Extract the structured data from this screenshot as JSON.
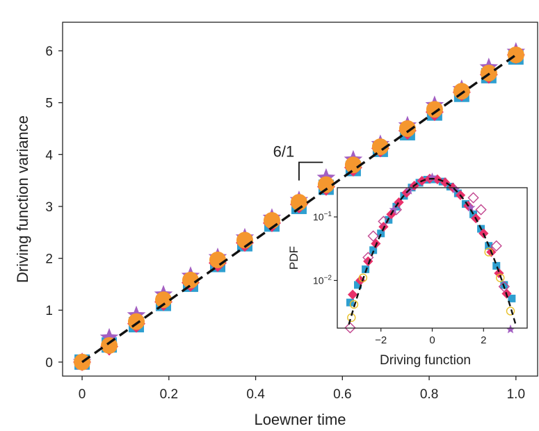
{
  "chart_data": [
    {
      "type": "scatter",
      "xlabel": "Loewner time",
      "ylabel": "Driving function variance",
      "xlim": [
        -0.045,
        1.05
      ],
      "ylim": [
        -0.27,
        6.55
      ],
      "xticks": [
        0,
        0.2,
        0.4,
        0.6,
        0.8,
        1.0
      ],
      "xtick_labels": [
        "0",
        "0.2",
        "0.4",
        "0.6",
        "0.8",
        "1.0"
      ],
      "yticks": [
        0,
        1,
        2,
        3,
        4,
        5,
        6
      ],
      "ytick_labels": [
        "0",
        "1",
        "2",
        "3",
        "4",
        "5",
        "6"
      ],
      "grid": false,
      "x": [
        0,
        0.0625,
        0.125,
        0.1875,
        0.25,
        0.3125,
        0.375,
        0.4375,
        0.5,
        0.5625,
        0.625,
        0.6875,
        0.75,
        0.8125,
        0.875,
        0.9375,
        1.0
      ],
      "series": [
        {
          "marker": "square",
          "color": "#2e9fd0",
          "values": [
            0,
            0.33,
            0.72,
            1.13,
            1.5,
            1.88,
            2.28,
            2.66,
            3.0,
            3.37,
            3.73,
            4.1,
            4.42,
            4.8,
            5.16,
            5.52,
            5.88
          ]
        },
        {
          "marker": "star",
          "color": "#a35fc2",
          "values": [
            0,
            0.47,
            0.9,
            1.3,
            1.66,
            2.02,
            2.4,
            2.78,
            3.12,
            3.55,
            3.9,
            4.2,
            4.56,
            4.95,
            5.26,
            5.68,
            5.98
          ]
        },
        {
          "marker": "diamond",
          "color": "#e8316a",
          "values": [
            0,
            0.3,
            0.74,
            1.16,
            1.53,
            1.91,
            2.3,
            2.68,
            3.04,
            3.38,
            3.75,
            4.12,
            4.46,
            4.82,
            5.2,
            5.54,
            5.92
          ]
        },
        {
          "marker": "circle",
          "color": "#f5972f",
          "values": [
            0,
            0.32,
            0.78,
            1.2,
            1.58,
            1.97,
            2.35,
            2.73,
            3.08,
            3.42,
            3.8,
            4.15,
            4.5,
            4.87,
            5.22,
            5.57,
            5.92
          ]
        }
      ],
      "fit_line": {
        "style": "dashed",
        "color": "#111111",
        "x": [
          0,
          1.0
        ],
        "y": [
          0,
          5.92
        ]
      },
      "slope_annotation": {
        "label": "6/1",
        "x_start": 0.5,
        "x_end": 0.555,
        "y_top": 3.85,
        "y_bottom": 3.5
      }
    },
    {
      "type": "scatter",
      "xlabel": "Driving function",
      "ylabel": "PDF",
      "xlim": [
        -3.7,
        3.7
      ],
      "ylim_log10": [
        -2.75,
        -0.54
      ],
      "xticks": [
        -2,
        0,
        2
      ],
      "xtick_labels": [
        "−2",
        "0",
        "2"
      ],
      "yticks_log10": [
        -2,
        -1
      ],
      "ytick_labels": [
        "10−2",
        "10−1"
      ],
      "grid": false,
      "fit_curve": {
        "style": "dashed",
        "color": "#111111",
        "sigma": 1.0
      },
      "series": [
        {
          "marker": "square",
          "color": "#2e9fd0",
          "fill": true,
          "x": [
            -3.2,
            -2.9,
            -2.6,
            -2.3,
            -2.0,
            -1.7,
            -1.4,
            -1.1,
            -0.8,
            -0.5,
            -0.2,
            0.1,
            0.4,
            0.7,
            1.0,
            1.3,
            1.6,
            1.9,
            2.2,
            2.5,
            2.8,
            3.1
          ],
          "y": [
            0.0045,
            0.0085,
            0.015,
            0.03,
            0.055,
            0.09,
            0.145,
            0.215,
            0.29,
            0.345,
            0.385,
            0.39,
            0.36,
            0.3,
            0.235,
            0.16,
            0.11,
            0.065,
            0.035,
            0.017,
            0.0085,
            0.0052
          ]
        },
        {
          "marker": "diamond",
          "color": "#e8316a",
          "fill": true,
          "x": [
            -3.1,
            -2.8,
            -2.5,
            -2.2,
            -1.9,
            -1.6,
            -1.3,
            -1.0,
            -0.7,
            -0.4,
            -0.1,
            0.2,
            0.5,
            0.8,
            1.1,
            1.4,
            1.7,
            2.0,
            2.3,
            2.6,
            2.9
          ],
          "y": [
            0.006,
            0.01,
            0.02,
            0.038,
            0.07,
            0.11,
            0.17,
            0.24,
            0.31,
            0.37,
            0.4,
            0.39,
            0.35,
            0.29,
            0.22,
            0.15,
            0.095,
            0.055,
            0.028,
            0.013,
            0.0062
          ]
        },
        {
          "marker": "circle",
          "color": "#e7c02a",
          "fill": false,
          "x": [
            -3.15,
            -3.05,
            -2.7,
            3.05,
            2.65,
            2.2
          ],
          "y": [
            0.0026,
            0.0042,
            0.011,
            0.0033,
            0.011,
            0.028
          ]
        },
        {
          "marker": "diamond",
          "color": "#c2458f",
          "fill": false,
          "x": [
            -3.2,
            -2.5,
            -2.3,
            -1.9,
            -1.4,
            1.6,
            1.9,
            2.5,
            2.8
          ],
          "y": [
            0.0018,
            0.023,
            0.05,
            0.085,
            0.13,
            0.2,
            0.13,
            0.035,
            0.008
          ]
        },
        {
          "marker": "star",
          "color": "#a35fc2",
          "fill": true,
          "x": [
            -1.5,
            -0.9,
            0.0,
            0.9,
            1.5,
            3.05
          ],
          "y": [
            0.13,
            0.26,
            0.42,
            0.27,
            0.14,
            0.0017
          ]
        }
      ]
    }
  ]
}
